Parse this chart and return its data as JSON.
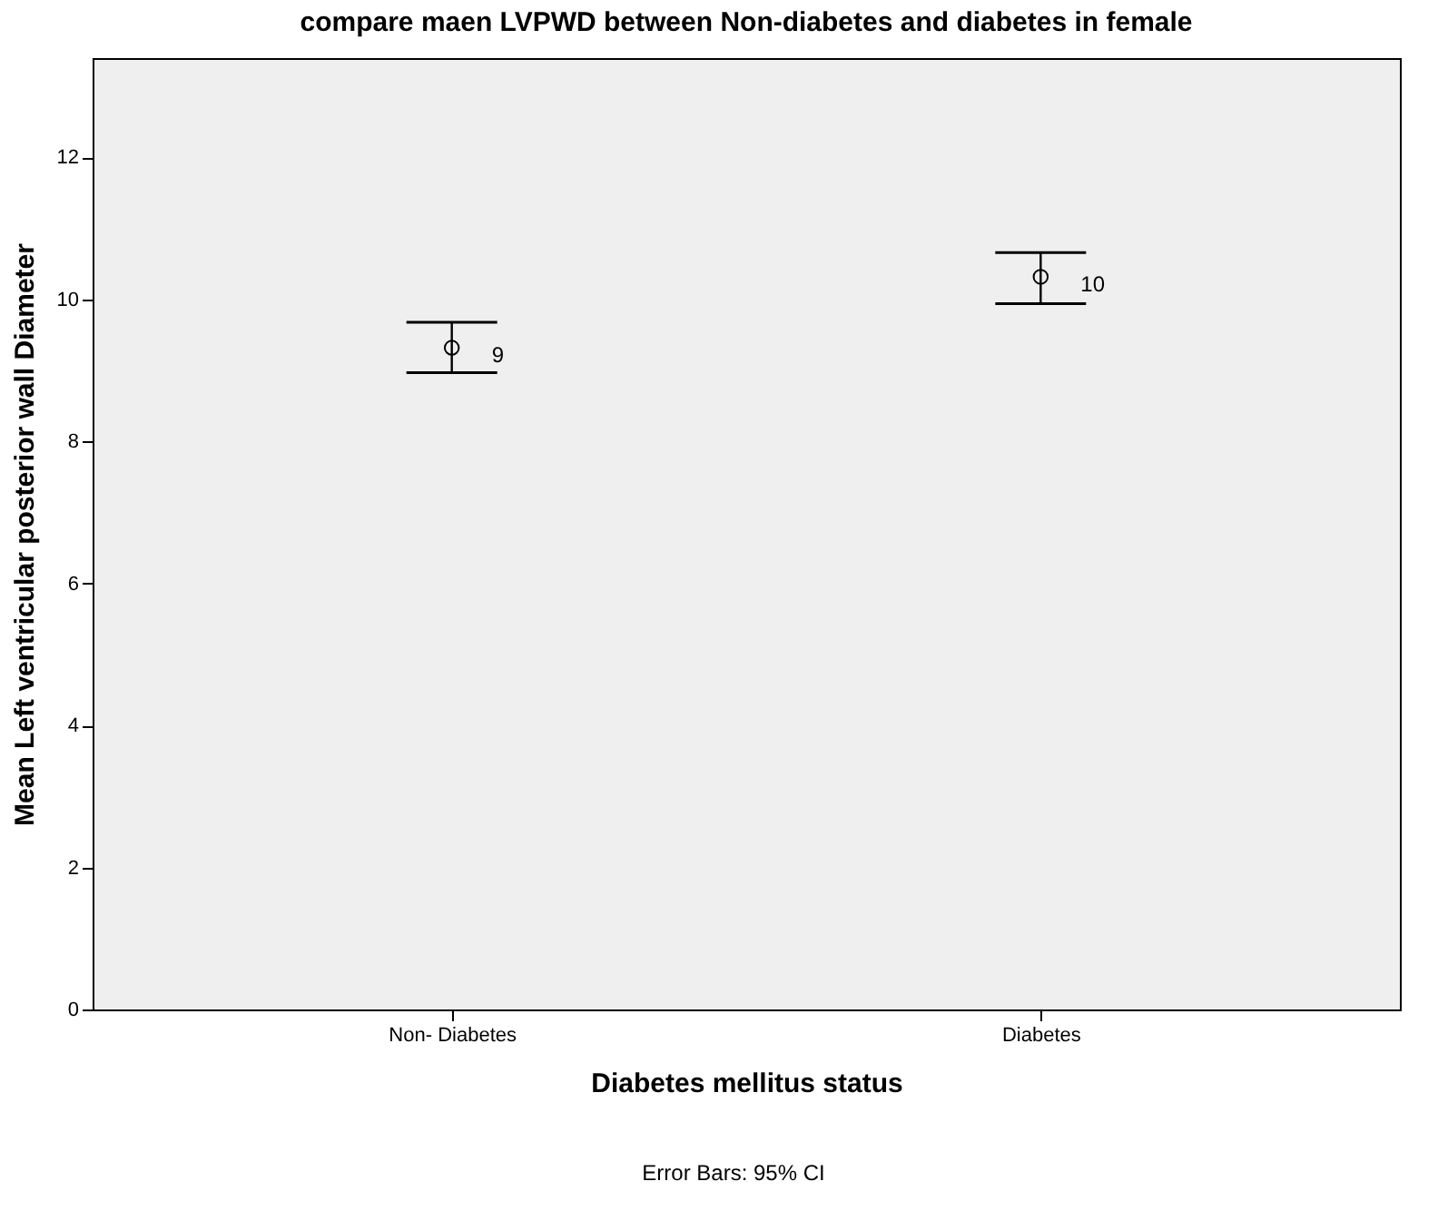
{
  "chart_data": {
    "type": "scatter",
    "title": "compare maen LVPWD between  Non-diabetes and diabetes in female",
    "xlabel": "Diabetes mellitus status",
    "ylabel": "Mean Left ventricular posterior wall Diameter",
    "categories": [
      "Non- Diabetes",
      "Diabetes"
    ],
    "values": [
      9.32,
      10.32
    ],
    "errors": [
      [
        8.97,
        9.68
      ],
      [
        9.94,
        10.66
      ]
    ],
    "value_labels": [
      "9",
      "10"
    ],
    "marker": "circle",
    "ylim": [
      0,
      13.4
    ],
    "yticks": [
      0,
      2,
      4,
      6,
      8,
      10,
      12
    ],
    "grid": false,
    "annotations": [
      "Error Bars: 95% CI"
    ]
  }
}
